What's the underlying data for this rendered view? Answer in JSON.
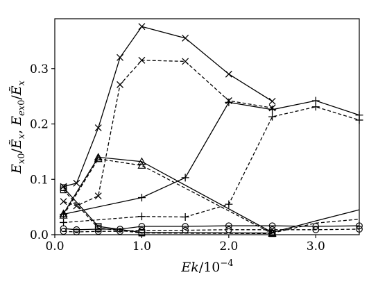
{
  "chart_data": {
    "type": "line",
    "xlabel": "Ek/10^{-4}",
    "ylabel": "E_{x0}/Ẽ_x, E_{ex0}/Ẽ_x",
    "xlim": [
      0.0,
      3.5
    ],
    "ylim": [
      0.0,
      0.39
    ],
    "xticks": [
      {
        "value": 0.0,
        "label": "0.0"
      },
      {
        "value": 1.0,
        "label": "1.0"
      },
      {
        "value": 2.0,
        "label": "2.0"
      },
      {
        "value": 3.0,
        "label": "3.0"
      }
    ],
    "yticks": [
      {
        "value": 0.0,
        "label": "0.0"
      },
      {
        "value": 0.1,
        "label": "0.1"
      },
      {
        "value": 0.2,
        "label": "0.2"
      },
      {
        "value": 0.3,
        "label": "0.3"
      }
    ],
    "grid": false,
    "legend": "none",
    "series": [
      {
        "line": "solid",
        "marker": "x",
        "x": [
          0.1,
          0.25,
          0.5,
          0.75,
          1.0,
          1.5,
          2.0,
          2.5
        ],
        "y": [
          0.087,
          0.093,
          0.193,
          0.32,
          0.376,
          0.355,
          0.29,
          0.241
        ]
      },
      {
        "line": "dashed",
        "marker": "x",
        "x": [
          0.1,
          0.25,
          0.5,
          0.75,
          1.0,
          1.5,
          2.0,
          2.5
        ],
        "y": [
          0.06,
          0.052,
          0.07,
          0.271,
          0.315,
          0.313,
          0.242,
          0.229
        ]
      },
      {
        "line": "solid",
        "marker": "+",
        "x": [
          0.1,
          1.0,
          1.5,
          2.0,
          2.5,
          3.0,
          3.5
        ],
        "y": [
          0.037,
          0.067,
          0.103,
          0.239,
          0.226,
          0.242,
          0.216
        ]
      },
      {
        "line": "dashed",
        "marker": "+",
        "x": [
          0.1,
          1.0,
          1.5,
          2.0,
          2.5,
          3.0,
          3.5
        ],
        "y": [
          0.022,
          0.033,
          0.032,
          0.055,
          0.213,
          0.231,
          0.207
        ]
      },
      {
        "line": "solid",
        "marker": "triangle",
        "x": [
          0.1,
          0.5,
          1.0,
          2.5
        ],
        "y": [
          0.038,
          0.14,
          0.132,
          0.004
        ]
      },
      {
        "line": "dashed",
        "marker": "triangle",
        "x": [
          0.1,
          0.5,
          1.0,
          2.5
        ],
        "y": [
          0.035,
          0.137,
          0.125,
          0.002
        ]
      },
      {
        "line": "solid",
        "marker": "square",
        "x": [
          0.1,
          0.5,
          1.0,
          2.5
        ],
        "y": [
          0.085,
          0.015,
          0.004,
          0.003
        ]
      },
      {
        "line": "dashed",
        "marker": "square",
        "x": [
          0.1,
          0.5,
          1.0,
          2.5
        ],
        "y": [
          0.081,
          0.012,
          0.003,
          0.002
        ]
      },
      {
        "line": "solid",
        "marker": "circle",
        "x": [
          0.1,
          0.25,
          0.5,
          0.75,
          1.0,
          1.5,
          2.0,
          2.5,
          3.0,
          3.5
        ],
        "y": [
          0.011,
          0.009,
          0.01,
          0.01,
          0.015,
          0.015,
          0.016,
          0.016,
          0.015,
          0.016
        ]
      },
      {
        "line": "dashed",
        "marker": "circle",
        "x": [
          0.1,
          0.25,
          0.5,
          0.75,
          1.0,
          1.5,
          2.0,
          2.5,
          3.0,
          3.5
        ],
        "y": [
          0.006,
          0.005,
          0.006,
          0.006,
          0.008,
          0.008,
          0.009,
          0.009,
          0.009,
          0.01
        ]
      },
      {
        "line": "solid",
        "marker": "none",
        "x": [
          2.5,
          3.0,
          3.5
        ],
        "y": [
          0.004,
          0.025,
          0.045
        ]
      },
      {
        "line": "dashed",
        "marker": "none",
        "x": [
          2.5,
          3.0,
          3.5
        ],
        "y": [
          0.003,
          0.021,
          0.028
        ]
      }
    ]
  }
}
